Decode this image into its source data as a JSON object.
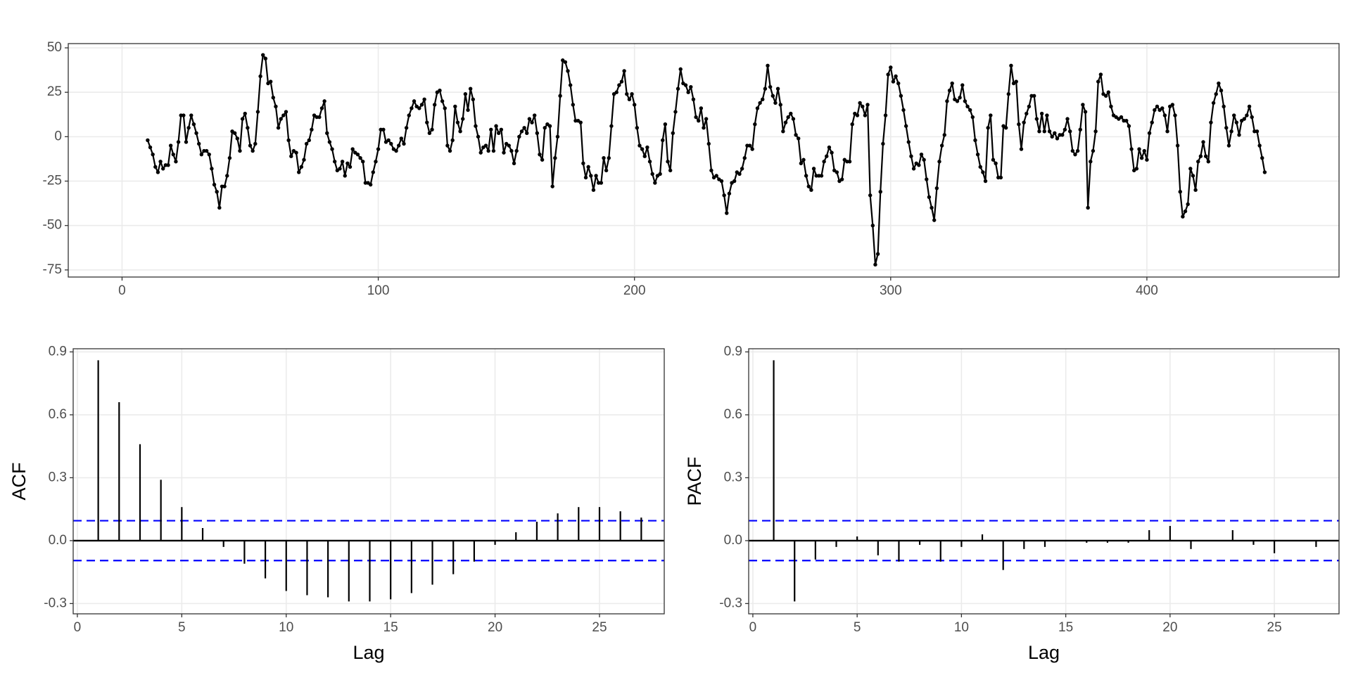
{
  "chart_data": [
    {
      "type": "line",
      "color": "#000000",
      "grid": true,
      "xlim": [
        -21,
        475
      ],
      "ylim": [
        -79,
        52.4
      ],
      "xticks": [
        0,
        100,
        200,
        300,
        400
      ],
      "yticks": [
        -75,
        -50,
        -25,
        0,
        25,
        50
      ],
      "x": [
        10,
        11,
        12,
        13,
        14,
        15,
        16,
        17,
        18,
        19,
        20,
        21,
        22,
        23,
        24,
        25,
        26,
        27,
        28,
        29,
        30,
        31,
        32,
        33,
        34,
        35,
        36,
        37,
        38,
        39,
        40,
        41,
        42,
        43,
        44,
        45,
        46,
        47,
        48,
        49,
        50,
        51,
        52,
        53,
        54,
        55,
        56,
        57,
        58,
        59,
        60,
        61,
        62,
        63,
        64,
        65,
        66,
        67,
        68,
        69,
        70,
        71,
        72,
        73,
        74,
        75,
        76,
        77,
        78,
        79,
        80,
        81,
        82,
        83,
        84,
        85,
        86,
        87,
        88,
        89,
        90,
        91,
        92,
        93,
        94,
        95,
        96,
        97,
        98,
        99,
        100,
        101,
        102,
        103,
        104,
        105,
        106,
        107,
        108,
        109,
        110,
        111,
        112,
        113,
        114,
        115,
        116,
        117,
        118,
        119,
        120,
        121,
        122,
        123,
        124,
        125,
        126,
        127,
        128,
        129,
        130,
        131,
        132,
        133,
        134,
        135,
        136,
        137,
        138,
        139,
        140,
        141,
        142,
        143,
        144,
        145,
        146,
        147,
        148,
        149,
        150,
        151,
        152,
        153,
        154,
        155,
        156,
        157,
        158,
        159,
        160,
        161,
        162,
        163,
        164,
        165,
        166,
        167,
        168,
        169,
        170,
        171,
        172,
        173,
        174,
        175,
        176,
        177,
        178,
        179,
        180,
        181,
        182,
        183,
        184,
        185,
        186,
        187,
        188,
        189,
        190,
        191,
        192,
        193,
        194,
        195,
        196,
        197,
        198,
        199,
        200,
        201,
        202,
        203,
        204,
        205,
        206,
        207,
        208,
        209,
        210,
        211,
        212,
        213,
        214,
        215,
        216,
        217,
        218,
        219,
        220,
        221,
        222,
        223,
        224,
        225,
        226,
        227,
        228,
        229,
        230,
        231,
        232,
        233,
        234,
        235,
        236,
        237,
        238,
        239,
        240,
        241,
        242,
        243,
        244,
        245,
        246,
        247,
        248,
        249,
        250,
        251,
        252,
        253,
        254,
        255,
        256,
        257,
        258,
        259,
        260,
        261,
        262,
        263,
        264,
        265,
        266,
        267,
        268,
        269,
        270,
        271,
        272,
        273,
        274,
        275,
        276,
        277,
        278,
        279,
        280,
        281,
        282,
        283,
        284,
        285,
        286,
        287,
        288,
        289,
        290,
        291,
        292,
        293,
        294,
        295,
        296,
        297,
        298,
        299,
        300,
        301,
        302,
        303,
        304,
        305,
        306,
        307,
        308,
        309,
        310,
        311,
        312,
        313,
        314,
        315,
        316,
        317,
        318,
        319,
        320,
        321,
        322,
        323,
        324,
        325,
        326,
        327,
        328,
        329,
        330,
        331,
        332,
        333,
        334,
        335,
        336,
        337,
        338,
        339,
        340,
        341,
        342,
        343,
        344,
        345,
        346,
        347,
        348,
        349,
        350,
        351,
        352,
        353,
        354,
        355,
        356,
        357,
        358,
        359,
        360,
        361,
        362,
        363,
        364,
        365,
        366,
        367,
        368,
        369,
        370,
        371,
        372,
        373,
        374,
        375,
        376,
        377,
        378,
        379,
        380,
        381,
        382,
        383,
        384,
        385,
        386,
        387,
        388,
        389,
        390,
        391,
        392,
        393,
        394,
        395,
        396,
        397,
        398,
        399,
        400,
        401,
        402,
        403,
        404,
        405,
        406,
        407,
        408,
        409,
        410,
        411,
        412,
        413,
        414,
        415,
        416,
        417,
        418,
        419,
        420,
        421,
        422,
        423,
        424,
        425,
        426,
        427,
        428,
        429,
        430,
        431,
        432,
        433,
        434,
        435,
        436,
        437,
        438,
        439,
        440,
        441,
        442,
        443,
        444,
        445,
        446
      ],
      "values": [
        -2,
        -6,
        -10,
        -17,
        -20,
        -14,
        -18,
        -16,
        -16,
        -5,
        -10,
        -14,
        -3,
        12,
        12,
        -3,
        5,
        12,
        7,
        2,
        -4,
        -10,
        -8,
        -8,
        -10,
        -18,
        -27,
        -31,
        -40,
        -28,
        -28,
        -22,
        -12,
        3,
        2,
        -1,
        -8,
        10,
        13,
        5,
        -5,
        -8,
        -4,
        14,
        34,
        46,
        44,
        30,
        31,
        22,
        17,
        5,
        10,
        12,
        14,
        -2,
        -11,
        -8,
        -9,
        -20,
        -17,
        -13,
        -4,
        -2,
        4,
        12,
        11,
        11,
        16,
        20,
        2,
        -3,
        -7,
        -14,
        -19,
        -18,
        -14,
        -22,
        -15,
        -17,
        -7,
        -9,
        -10,
        -12,
        -14,
        -26,
        -26,
        -27,
        -20,
        -14,
        -7,
        4,
        4,
        -3,
        -2,
        -4,
        -7,
        -8,
        -5,
        -1,
        -4,
        5,
        12,
        16,
        20,
        17,
        16,
        18,
        21,
        8,
        2,
        4,
        18,
        25,
        26,
        20,
        16,
        -5,
        -8,
        -2,
        17,
        8,
        3,
        10,
        24,
        15,
        27,
        21,
        6,
        0,
        -9,
        -6,
        -5,
        -8,
        4,
        -8,
        6,
        2,
        4,
        -9,
        -4,
        -5,
        -8,
        -15,
        -8,
        0,
        3,
        5,
        2,
        10,
        8,
        12,
        2,
        -10,
        -13,
        5,
        7,
        6,
        -28,
        -12,
        0,
        23,
        43,
        42,
        37,
        29,
        18,
        9,
        9,
        8,
        -15,
        -23,
        -17,
        -22,
        -30,
        -22,
        -26,
        -26,
        -12,
        -19,
        -12,
        6,
        24,
        25,
        29,
        31,
        37,
        24,
        21,
        24,
        18,
        5,
        -5,
        -7,
        -11,
        -6,
        -14,
        -21,
        -26,
        -22,
        -21,
        -2,
        7,
        -14,
        -19,
        2,
        14,
        27,
        38,
        30,
        29,
        25,
        28,
        21,
        11,
        9,
        16,
        5,
        10,
        -4,
        -19,
        -23,
        -22,
        -24,
        -25,
        -33,
        -43,
        -32,
        -26,
        -25,
        -20,
        -21,
        -18,
        -12,
        -5,
        -5,
        -7,
        7,
        16,
        19,
        21,
        27,
        40,
        28,
        23,
        19,
        27,
        18,
        3,
        8,
        11,
        13,
        10,
        1,
        -1,
        -15,
        -13,
        -22,
        -28,
        -30,
        -18,
        -22,
        -22,
        -22,
        -14,
        -11,
        -6,
        -9,
        -19,
        -20,
        -25,
        -24,
        -13,
        -14,
        -14,
        7,
        13,
        12,
        19,
        17,
        12,
        18,
        -33,
        -50,
        -72,
        -66,
        -31,
        -4,
        12,
        35,
        39,
        31,
        34,
        30,
        23,
        15,
        6,
        -3,
        -11,
        -18,
        -15,
        -16,
        -10,
        -13,
        -24,
        -34,
        -40,
        -47,
        -29,
        -14,
        -5,
        1,
        20,
        26,
        30,
        21,
        20,
        22,
        29,
        20,
        17,
        15,
        11,
        -2,
        -10,
        -17,
        -20,
        -25,
        5,
        12,
        -13,
        -15,
        -23,
        -23,
        6,
        5,
        24,
        40,
        30,
        31,
        7,
        -7,
        8,
        13,
        17,
        23,
        23,
        10,
        3,
        13,
        3,
        12,
        3,
        0,
        2,
        -1,
        1,
        1,
        4,
        10,
        3,
        -8,
        -10,
        -8,
        4,
        18,
        14,
        -40,
        -14,
        -8,
        3,
        31,
        35,
        24,
        23,
        25,
        17,
        12,
        11,
        10,
        11,
        9,
        9,
        6,
        -7,
        -19,
        -18,
        -7,
        -12,
        -8,
        -13,
        2,
        8,
        15,
        17,
        15,
        16,
        12,
        3,
        17,
        18,
        12,
        -5,
        -31,
        -45,
        -42,
        -38,
        -18,
        -22,
        -30,
        -14,
        -11,
        -3,
        -11,
        -14,
        8,
        19,
        24,
        30,
        26,
        17,
        5,
        -5,
        3,
        12,
        8,
        1,
        9,
        10,
        12,
        17,
        11,
        3,
        3,
        -5,
        -12,
        -20
      ]
    },
    {
      "type": "bar",
      "color": "#000000",
      "grid": true,
      "xlabel": "Lag",
      "ylabel": "ACF",
      "xlim": [
        -0.2,
        28.1
      ],
      "ylim": [
        -0.349,
        0.915
      ],
      "xticks": [
        0,
        5,
        10,
        15,
        20,
        25
      ],
      "yticks": [
        -0.3,
        {
          "value": 0,
          "label": "0.0"
        },
        0.3,
        0.6,
        0.9
      ],
      "ci_lines": [
        0.095,
        -0.095
      ],
      "ci_color": "#0000ff",
      "x": [
        1,
        2,
        3,
        4,
        5,
        6,
        7,
        8,
        9,
        10,
        11,
        12,
        13,
        14,
        15,
        16,
        17,
        18,
        19,
        20,
        21,
        22,
        23,
        24,
        25,
        26,
        27
      ],
      "values": [
        0.86,
        0.66,
        0.46,
        0.29,
        0.16,
        0.06,
        -0.03,
        -0.11,
        -0.18,
        -0.24,
        -0.26,
        -0.27,
        -0.29,
        -0.29,
        -0.28,
        -0.25,
        -0.21,
        -0.16,
        -0.1,
        -0.02,
        0.04,
        0.09,
        0.13,
        0.16,
        0.16,
        0.14,
        0.11
      ]
    },
    {
      "type": "bar",
      "color": "#000000",
      "grid": true,
      "xlabel": "Lag",
      "ylabel": "PACF",
      "xlim": [
        -0.2,
        28.1
      ],
      "ylim": [
        -0.349,
        0.915
      ],
      "xticks": [
        0,
        5,
        10,
        15,
        20,
        25
      ],
      "yticks": [
        -0.3,
        {
          "value": 0,
          "label": "0.0"
        },
        0.3,
        0.6,
        0.9
      ],
      "ci_lines": [
        0.095,
        -0.095
      ],
      "ci_color": "#0000ff",
      "x": [
        1,
        2,
        3,
        4,
        5,
        6,
        7,
        8,
        9,
        10,
        11,
        12,
        13,
        14,
        15,
        16,
        17,
        18,
        19,
        20,
        21,
        22,
        23,
        24,
        25,
        26,
        27
      ],
      "values": [
        0.86,
        -0.29,
        -0.09,
        -0.03,
        0.02,
        -0.07,
        -0.1,
        -0.02,
        -0.1,
        -0.03,
        0.03,
        -0.14,
        -0.04,
        -0.03,
        0.001,
        -0.01,
        -0.01,
        -0.01,
        0.05,
        0.07,
        -0.04,
        0.001,
        0.05,
        -0.02,
        -0.06,
        0.002,
        -0.03
      ]
    }
  ]
}
